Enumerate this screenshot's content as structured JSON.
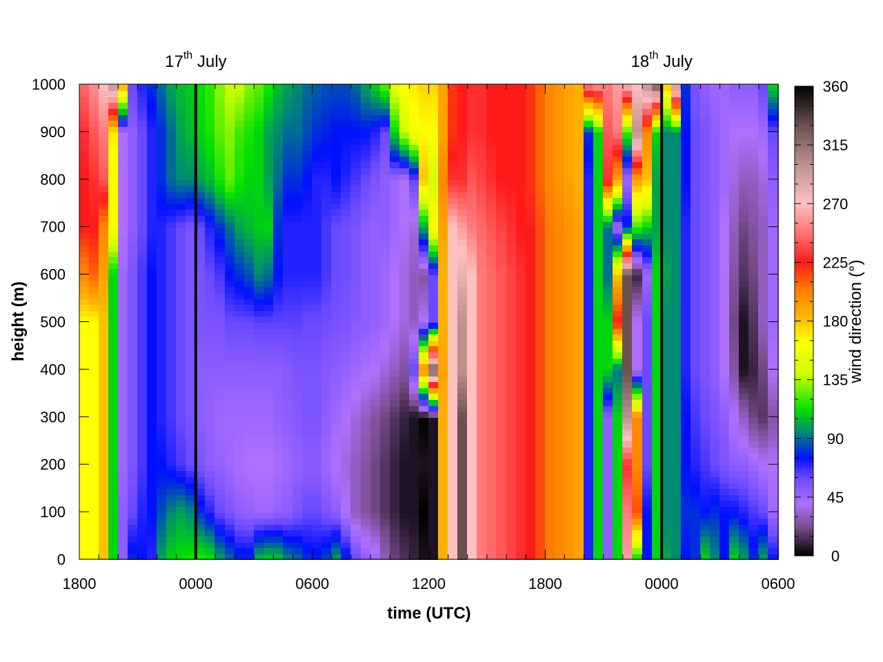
{
  "chart_data": {
    "type": "heatmap",
    "title": "",
    "xlabel": "time (UTC)",
    "ylabel": "height (m)",
    "colorbar_label": "wind direction (°)",
    "x_tick_labels": [
      "1800",
      "0000",
      "0600",
      "1200",
      "1800",
      "0000",
      "0600"
    ],
    "x_tick_hours": [
      0,
      6,
      12,
      18,
      24,
      30,
      36
    ],
    "x_range_hours": [
      0,
      36
    ],
    "y_ticks": [
      0,
      100,
      200,
      300,
      400,
      500,
      600,
      700,
      800,
      900,
      1000
    ],
    "ylim": [
      0,
      1000
    ],
    "colorbar_ticks": [
      0,
      45,
      90,
      135,
      180,
      225,
      270,
      315,
      360
    ],
    "colorbar_range": [
      0,
      360
    ],
    "day_markers": [
      {
        "day": "17",
        "suffix": "th",
        "month": "July",
        "hour": 6
      },
      {
        "day": "18",
        "suffix": "th",
        "month": "July",
        "hour": 30
      }
    ],
    "colormap": [
      {
        "v": 0,
        "c": "#000000"
      },
      {
        "v": 22,
        "c": "#7a4d8f"
      },
      {
        "v": 40,
        "c": "#b070ff"
      },
      {
        "v": 60,
        "c": "#6a4aff"
      },
      {
        "v": 75,
        "c": "#0010ff"
      },
      {
        "v": 95,
        "c": "#008a72"
      },
      {
        "v": 112,
        "c": "#00e000"
      },
      {
        "v": 140,
        "c": "#d0ff00"
      },
      {
        "v": 165,
        "c": "#ffff00"
      },
      {
        "v": 185,
        "c": "#ffb000"
      },
      {
        "v": 205,
        "c": "#ff7a00"
      },
      {
        "v": 225,
        "c": "#ff1a1a"
      },
      {
        "v": 245,
        "c": "#ff6a6a"
      },
      {
        "v": 270,
        "c": "#ffc0c0"
      },
      {
        "v": 300,
        "c": "#c09090"
      },
      {
        "v": 330,
        "c": "#6a5050"
      },
      {
        "v": 360,
        "c": "#000000"
      }
    ],
    "grid_time_hours": [
      0.25,
      0.75,
      1.25,
      1.75,
      2.25,
      2.75,
      3.25,
      3.75,
      4.25,
      4.75,
      5.25,
      5.75,
      6.25,
      6.75,
      7.25,
      7.75,
      8.25,
      8.75,
      9.25,
      9.75,
      10.25,
      10.75,
      11.25,
      11.75,
      12.25,
      12.75,
      13.25,
      13.75,
      14.25,
      14.75,
      15.25,
      15.75,
      16.25,
      16.75,
      17.25,
      17.75,
      18.25,
      18.75,
      19.25,
      19.75,
      20.25,
      20.75,
      21.25,
      21.75,
      22.25,
      22.75,
      23.25,
      23.75,
      24.25,
      24.75,
      25.25,
      25.75,
      26.25,
      26.75,
      27.25,
      27.75,
      28.25,
      28.75,
      29.25,
      29.75,
      30.25,
      30.75,
      31.25,
      31.75,
      32.25,
      32.75,
      33.25,
      33.75,
      34.25,
      34.75,
      35.25,
      35.75
    ],
    "grid_heights_m": [
      0,
      100,
      200,
      300,
      400,
      500,
      600,
      700,
      800,
      900,
      1000
    ],
    "wind_direction_deg": [
      [
        165,
        165,
        180,
        110,
        50,
        80,
        75,
        70,
        100,
        110,
        112,
        115,
        118,
        115,
        100,
        90,
        80,
        80,
        105,
        110,
        108,
        95,
        90,
        80,
        78,
        85,
        100,
        80,
        60,
        50,
        45,
        30,
        20,
        15,
        10,
        5,
        5,
        185,
        270,
        330,
        270,
        250,
        245,
        240,
        235,
        230,
        225,
        215,
        205,
        200,
        195,
        190,
        70,
        110,
        50,
        110,
        260,
        110,
        75,
        110,
        100,
        95,
        75,
        80,
        110,
        95,
        75,
        110,
        100,
        80,
        100,
        75
      ],
      [
        165,
        165,
        180,
        110,
        50,
        60,
        70,
        75,
        85,
        95,
        100,
        95,
        80,
        70,
        60,
        55,
        50,
        48,
        45,
        45,
        48,
        50,
        55,
        60,
        60,
        55,
        50,
        40,
        30,
        25,
        20,
        15,
        10,
        5,
        5,
        0,
        5,
        185,
        270,
        330,
        270,
        250,
        245,
        240,
        235,
        230,
        225,
        215,
        205,
        200,
        195,
        190,
        70,
        110,
        50,
        110,
        250,
        215,
        75,
        110,
        95,
        95,
        80,
        80,
        75,
        80,
        75,
        75,
        70,
        65,
        60,
        45
      ],
      [
        165,
        165,
        180,
        110,
        45,
        55,
        65,
        75,
        75,
        70,
        65,
        60,
        55,
        50,
        48,
        45,
        42,
        40,
        40,
        40,
        42,
        45,
        48,
        50,
        50,
        45,
        40,
        35,
        30,
        25,
        20,
        15,
        10,
        5,
        5,
        5,
        5,
        185,
        270,
        330,
        270,
        250,
        245,
        240,
        235,
        230,
        225,
        215,
        205,
        200,
        195,
        190,
        70,
        110,
        50,
        110,
        230,
        200,
        60,
        110,
        95,
        95,
        75,
        70,
        65,
        60,
        55,
        50,
        50,
        45,
        40,
        40
      ],
      [
        165,
        165,
        180,
        110,
        45,
        55,
        65,
        75,
        70,
        65,
        60,
        55,
        50,
        48,
        45,
        45,
        45,
        45,
        45,
        45,
        48,
        50,
        52,
        55,
        55,
        50,
        45,
        40,
        35,
        30,
        25,
        20,
        15,
        10,
        5,
        0,
        5,
        185,
        270,
        330,
        270,
        250,
        245,
        240,
        235,
        230,
        225,
        215,
        205,
        200,
        195,
        190,
        70,
        110,
        50,
        110,
        300,
        200,
        60,
        110,
        95,
        95,
        75,
        65,
        60,
        55,
        50,
        40,
        30,
        20,
        15,
        25
      ],
      [
        165,
        165,
        180,
        110,
        45,
        55,
        65,
        75,
        70,
        65,
        60,
        55,
        50,
        50,
        50,
        50,
        50,
        50,
        50,
        50,
        50,
        52,
        55,
        55,
        55,
        52,
        50,
        48,
        45,
        42,
        40,
        35,
        30,
        25,
        60,
        200,
        330,
        190,
        270,
        300,
        270,
        250,
        245,
        240,
        235,
        230,
        225,
        215,
        205,
        200,
        195,
        190,
        70,
        110,
        110,
        90,
        330,
        40,
        60,
        110,
        95,
        95,
        70,
        60,
        55,
        50,
        40,
        25,
        5,
        10,
        20,
        40
      ],
      [
        165,
        165,
        180,
        110,
        45,
        55,
        65,
        75,
        70,
        65,
        60,
        55,
        55,
        55,
        55,
        60,
        60,
        60,
        62,
        62,
        62,
        62,
        62,
        60,
        60,
        58,
        56,
        55,
        52,
        50,
        48,
        45,
        40,
        35,
        30,
        40,
        60,
        185,
        270,
        300,
        270,
        250,
        245,
        240,
        235,
        230,
        225,
        215,
        205,
        200,
        195,
        190,
        70,
        110,
        110,
        225,
        330,
        40,
        60,
        110,
        95,
        95,
        70,
        60,
        55,
        50,
        40,
        20,
        5,
        15,
        30,
        45
      ],
      [
        200,
        210,
        190,
        110,
        45,
        55,
        65,
        75,
        70,
        65,
        60,
        55,
        55,
        60,
        65,
        75,
        80,
        85,
        95,
        90,
        75,
        70,
        70,
        70,
        70,
        65,
        60,
        58,
        55,
        50,
        48,
        45,
        40,
        35,
        30,
        25,
        60,
        185,
        270,
        280,
        270,
        250,
        245,
        240,
        235,
        230,
        225,
        215,
        205,
        200,
        195,
        190,
        70,
        110,
        90,
        180,
        330,
        10,
        45,
        110,
        100,
        95,
        70,
        60,
        55,
        50,
        40,
        25,
        15,
        20,
        30,
        45
      ],
      [
        225,
        225,
        200,
        160,
        40,
        50,
        60,
        70,
        70,
        65,
        60,
        55,
        60,
        70,
        80,
        90,
        100,
        105,
        108,
        110,
        80,
        70,
        70,
        70,
        70,
        65,
        60,
        58,
        55,
        50,
        48,
        50,
        45,
        40,
        35,
        100,
        165,
        190,
        270,
        260,
        250,
        245,
        240,
        235,
        230,
        225,
        225,
        215,
        205,
        200,
        195,
        190,
        70,
        110,
        90,
        40,
        80,
        120,
        110,
        100,
        95,
        95,
        70,
        60,
        55,
        50,
        40,
        30,
        20,
        25,
        30,
        45
      ],
      [
        225,
        230,
        240,
        160,
        40,
        50,
        60,
        70,
        80,
        90,
        95,
        95,
        100,
        105,
        115,
        125,
        115,
        110,
        110,
        100,
        90,
        80,
        80,
        75,
        70,
        70,
        75,
        70,
        65,
        60,
        55,
        50,
        45,
        40,
        60,
        180,
        140,
        200,
        230,
        230,
        240,
        235,
        230,
        225,
        225,
        225,
        220,
        210,
        200,
        195,
        190,
        185,
        70,
        110,
        230,
        190,
        45,
        190,
        180,
        100,
        95,
        95,
        75,
        60,
        55,
        50,
        45,
        35,
        30,
        30,
        35,
        50
      ],
      [
        230,
        240,
        250,
        170,
        40,
        50,
        60,
        70,
        80,
        90,
        100,
        105,
        110,
        115,
        125,
        130,
        120,
        115,
        110,
        100,
        95,
        90,
        90,
        85,
        80,
        78,
        75,
        75,
        75,
        75,
        70,
        60,
        110,
        140,
        160,
        165,
        165,
        190,
        220,
        225,
        230,
        230,
        225,
        225,
        225,
        225,
        220,
        210,
        200,
        195,
        190,
        185,
        80,
        110,
        240,
        250,
        120,
        300,
        200,
        110,
        95,
        95,
        75,
        60,
        55,
        50,
        45,
        40,
        40,
        40,
        45,
        60
      ],
      [
        245,
        255,
        270,
        300,
        190,
        60,
        70,
        80,
        90,
        100,
        105,
        108,
        112,
        118,
        130,
        140,
        140,
        130,
        125,
        115,
        105,
        100,
        95,
        90,
        88,
        85,
        85,
        85,
        90,
        100,
        110,
        125,
        150,
        165,
        170,
        175,
        175,
        190,
        220,
        225,
        230,
        230,
        225,
        225,
        225,
        225,
        220,
        210,
        200,
        195,
        190,
        185,
        255,
        260,
        250,
        260,
        270,
        270,
        300,
        330,
        180,
        300,
        80,
        55,
        50,
        45,
        45,
        50,
        50,
        50,
        60,
        110
      ]
    ]
  }
}
